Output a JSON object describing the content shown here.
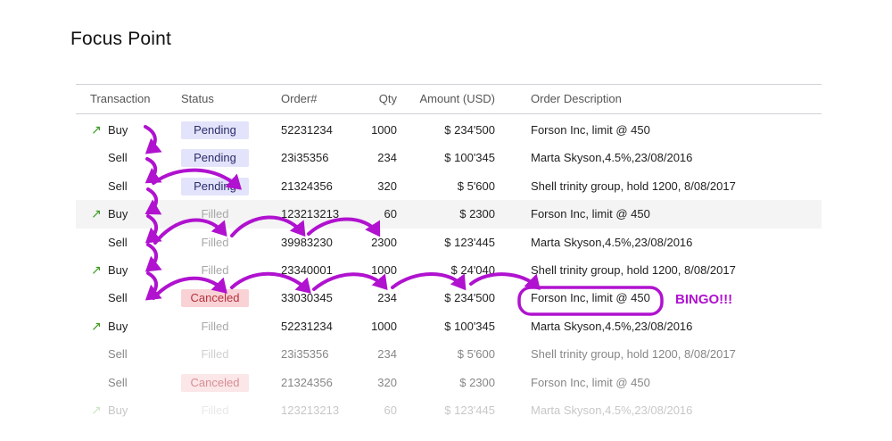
{
  "page": {
    "title": "Focus Point"
  },
  "table": {
    "headers": {
      "transaction": "Transaction",
      "status": "Status",
      "order": "Order#",
      "qty": "Qty",
      "amount": "Amount (USD)",
      "description": "Order Description"
    },
    "rows": [
      {
        "tx": "Buy",
        "up": true,
        "status": "Pending",
        "status_type": "pending",
        "order": "52231234",
        "qty": "1000",
        "amount": "$ 234'500",
        "desc": "Forson Inc, limit @ 450"
      },
      {
        "tx": "Sell",
        "up": false,
        "status": "Pending",
        "status_type": "pending",
        "order": "23i35356",
        "qty": "234",
        "amount": "$ 100'345",
        "desc": "Marta Skyson,4.5%,23/08/2016"
      },
      {
        "tx": "Sell",
        "up": false,
        "status": "Pending",
        "status_type": "pending",
        "order": "21324356",
        "qty": "320",
        "amount": "$ 5'600",
        "desc": "Shell trinity group, hold 1200, 8/08/2017"
      },
      {
        "tx": "Buy",
        "up": true,
        "status": "Filled",
        "status_type": "filled",
        "order": "123213213",
        "qty": "60",
        "amount": "$ 2300",
        "desc": "Forson Inc, limit @ 450"
      },
      {
        "tx": "Sell",
        "up": false,
        "status": "Filled",
        "status_type": "filled",
        "order": "39983230",
        "qty": "2300",
        "amount": "$ 123'445",
        "desc": "Marta Skyson,4.5%,23/08/2016"
      },
      {
        "tx": "Buy",
        "up": true,
        "status": "Filled",
        "status_type": "filled",
        "order": "23340001",
        "qty": "1000",
        "amount": "$ 24'040",
        "desc": "Shell trinity group, hold 1200, 8/08/2017"
      },
      {
        "tx": "Sell",
        "up": false,
        "status": "Canceled",
        "status_type": "canceled",
        "order": "33030345",
        "qty": "234",
        "amount": "$ 234'500",
        "desc": "Forson Inc, limit @ 450"
      },
      {
        "tx": "Buy",
        "up": true,
        "status": "Filled",
        "status_type": "filled",
        "order": "52231234",
        "qty": "1000",
        "amount": "$ 100'345",
        "desc": "Marta Skyson,4.5%,23/08/2016"
      },
      {
        "tx": "Sell",
        "up": false,
        "status": "Filled",
        "status_type": "filled",
        "order": "23i35356",
        "qty": "234",
        "amount": "$ 5'600",
        "desc": "Shell trinity group, hold 1200, 8/08/2017"
      },
      {
        "tx": "Sell",
        "up": false,
        "status": "Canceled",
        "status_type": "canceled",
        "order": "21324356",
        "qty": "320",
        "amount": "$ 2300",
        "desc": "Forson Inc, limit @ 450"
      },
      {
        "tx": "Buy",
        "up": true,
        "status": "Filled",
        "status_type": "filled",
        "order": "123213213",
        "qty": "60",
        "amount": "$ 123'445",
        "desc": "Marta Skyson,4.5%,23/08/2016"
      }
    ]
  },
  "annotation": {
    "text": "BINGO!!!",
    "color": "#b012cf"
  },
  "colors": {
    "up_arrow": "#3a9a1e",
    "pending_bg": "#e3e4fb",
    "canceled_bg": "#f9d2d6"
  }
}
